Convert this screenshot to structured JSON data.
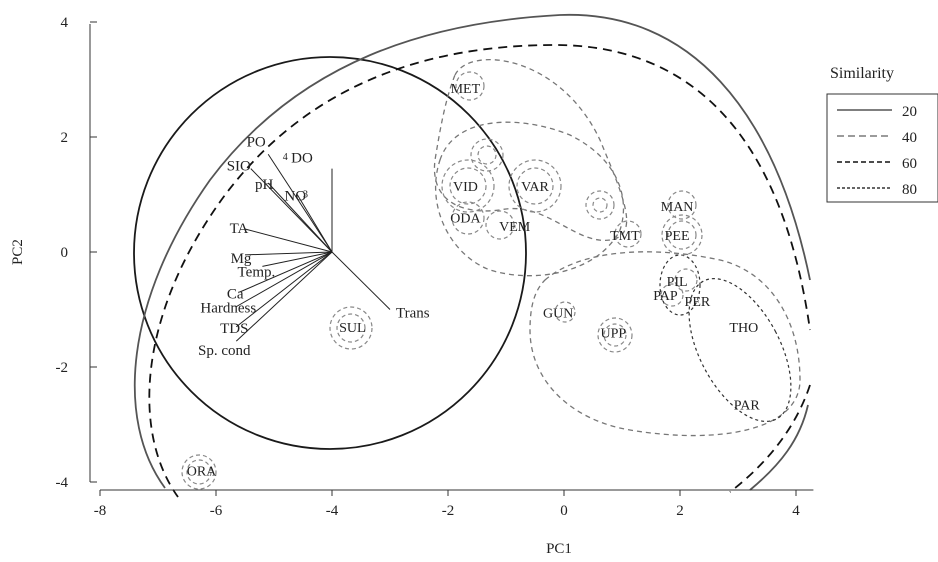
{
  "chart_data": {
    "type": "scatter",
    "xlabel": "PC1",
    "ylabel": "PC2",
    "xlim": [
      -8,
      4.3
    ],
    "ylim": [
      -4,
      4
    ],
    "xticks": [
      -8,
      -6,
      -4,
      -2,
      0,
      2,
      4
    ],
    "yticks": [
      -4,
      -2,
      0,
      2,
      4
    ],
    "tick_labels_x": [
      "-8",
      "-6",
      "-4",
      "-2",
      "0",
      "2",
      "4"
    ],
    "tick_labels_y": [
      "-4",
      "-2",
      "0",
      "2",
      "4"
    ],
    "sites": [
      {
        "name": "MET",
        "x": -1.7,
        "y": 2.85
      },
      {
        "name": "VID",
        "x": -1.7,
        "y": 1.15
      },
      {
        "name": "VAR",
        "x": -0.5,
        "y": 1.15
      },
      {
        "name": "ODA",
        "x": -1.7,
        "y": 0.6
      },
      {
        "name": "VEM",
        "x": -0.85,
        "y": 0.45
      },
      {
        "name": "TMT",
        "x": 1.05,
        "y": 0.3
      },
      {
        "name": "MAN",
        "x": 1.95,
        "y": 0.8
      },
      {
        "name": "PEE",
        "x": 1.95,
        "y": 0.3
      },
      {
        "name": "PIL",
        "x": 1.95,
        "y": -0.5
      },
      {
        "name": "PAP",
        "x": 1.75,
        "y": -0.75
      },
      {
        "name": "PER",
        "x": 2.3,
        "y": -0.85
      },
      {
        "name": "THO",
        "x": 3.1,
        "y": -1.3
      },
      {
        "name": "PAR",
        "x": 3.15,
        "y": -2.65
      },
      {
        "name": "GUN",
        "x": -0.1,
        "y": -1.05
      },
      {
        "name": "UPP",
        "x": 0.85,
        "y": -1.4
      },
      {
        "name": "SUL",
        "x": -3.65,
        "y": -1.3
      },
      {
        "name": "ORA",
        "x": -6.25,
        "y": -3.8
      }
    ],
    "vectors": [
      {
        "name": "PO",
        "x": -5.1,
        "y": 1.7
      },
      {
        "name": "SIO",
        "x": -5.4,
        "y": 1.45
      },
      {
        "name": "pH",
        "x": -5.1,
        "y": 1.2
      },
      {
        "name": "NO",
        "x": -4.6,
        "y": 1.0
      },
      {
        "name": "DO",
        "x": -4.0,
        "y": 1.45
      },
      {
        "name": "TA",
        "x": -5.5,
        "y": 0.4
      },
      {
        "name": "Mg",
        "x": -5.5,
        "y": -0.05
      },
      {
        "name": "Temp.",
        "x": -5.2,
        "y": -0.25
      },
      {
        "name": "Ca",
        "x": -5.6,
        "y": -0.7
      },
      {
        "name": "Hardness",
        "x": -5.65,
        "y": -0.95
      },
      {
        "name": "TDS",
        "x": -5.65,
        "y": -1.3
      },
      {
        "name": "Sp. cond",
        "x": -5.65,
        "y": -1.55
      },
      {
        "name": "Trans",
        "x": -3.0,
        "y": -1.0
      }
    ],
    "subscripts": [
      {
        "text": "4",
        "x": -4.85,
        "y": 1.6
      },
      {
        "text": "3",
        "x": -4.5,
        "y": 0.95
      }
    ],
    "legend": {
      "title": "Similarity",
      "position": "top-right",
      "entries": [
        {
          "label": "20",
          "dash": "solid",
          "color": "#555555"
        },
        {
          "label": "40",
          "dash": "dash",
          "color": "#7a7a7a"
        },
        {
          "label": "60",
          "dash": "dash-long",
          "color": "#111111"
        },
        {
          "label": "80",
          "dash": "dash-fine",
          "color": "#333333"
        }
      ]
    },
    "grid": false
  }
}
